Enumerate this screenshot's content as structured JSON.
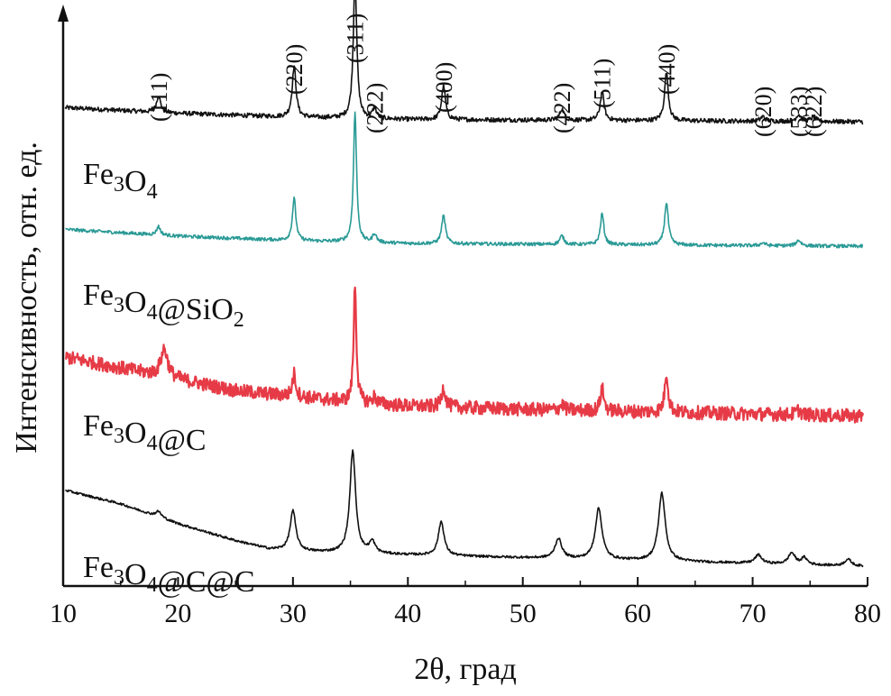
{
  "chart_data": {
    "type": "line",
    "title": "",
    "xlabel": "2θ, град",
    "ylabel": "Интенсивность, отн. ед.",
    "xlim": [
      10,
      80
    ],
    "xticks": [
      10,
      20,
      30,
      40,
      50,
      60,
      70,
      80
    ],
    "ytick_labels": false,
    "peak_labels": [
      {
        "hkl": "(111)",
        "x": 18.3
      },
      {
        "hkl": "(220)",
        "x": 30.1
      },
      {
        "hkl": "(311)",
        "x": 35.4
      },
      {
        "hkl": "(222)",
        "x": 37.1
      },
      {
        "hkl": "(400)",
        "x": 43.1
      },
      {
        "hkl": "(422)",
        "x": 53.4
      },
      {
        "hkl": "(511)",
        "x": 56.9
      },
      {
        "hkl": "(440)",
        "x": 62.5
      },
      {
        "hkl": "(620)",
        "x": 70.9
      },
      {
        "hkl": "(533)",
        "x": 74.0
      },
      {
        "hkl": "(622)",
        "x": 75.3
      }
    ],
    "series": [
      {
        "name": "Fe3O4",
        "label_base": "Fe",
        "label_sub1": "3",
        "label_mid": "O",
        "label_sub2": "4",
        "label_tail": "",
        "label_sub3": "",
        "color": "#111111",
        "offset": 0.82,
        "noise": 0.004,
        "baseline": [
          [
            10,
            0.025
          ],
          [
            20,
            0.015
          ],
          [
            30,
            0.008
          ],
          [
            40,
            0.004
          ],
          [
            80,
            0.0
          ]
        ],
        "peaks": [
          [
            18.3,
            0.03,
            0.2
          ],
          [
            30.1,
            0.09,
            0.2
          ],
          [
            35.4,
            0.25,
            0.18
          ],
          [
            37.1,
            0.018,
            0.2
          ],
          [
            43.1,
            0.06,
            0.2
          ],
          [
            53.4,
            0.02,
            0.22
          ],
          [
            56.9,
            0.05,
            0.2
          ],
          [
            62.5,
            0.085,
            0.2
          ],
          [
            70.9,
            0.008,
            0.25
          ],
          [
            74.0,
            0.012,
            0.25
          ],
          [
            75.3,
            0.008,
            0.25
          ]
        ]
      },
      {
        "name": "Fe3O4@SiO2",
        "label_base": "Fe",
        "label_sub1": "3",
        "label_mid": "O",
        "label_sub2": "4",
        "label_tail": "@SiO",
        "label_sub3": "2",
        "color": "#2a9a96",
        "offset": 0.6,
        "noise": 0.003,
        "baseline": [
          [
            10,
            0.03
          ],
          [
            20,
            0.018
          ],
          [
            30,
            0.01
          ],
          [
            40,
            0.005
          ],
          [
            80,
            0.0
          ]
        ],
        "peaks": [
          [
            18.3,
            0.015,
            0.2
          ],
          [
            30.1,
            0.075,
            0.18
          ],
          [
            35.4,
            0.23,
            0.16
          ],
          [
            37.1,
            0.015,
            0.2
          ],
          [
            43.1,
            0.05,
            0.2
          ],
          [
            53.4,
            0.015,
            0.22
          ],
          [
            56.9,
            0.055,
            0.18
          ],
          [
            62.5,
            0.075,
            0.2
          ],
          [
            70.9,
            0.005,
            0.25
          ],
          [
            74.0,
            0.01,
            0.25
          ]
        ]
      },
      {
        "name": "Fe3O4@C",
        "label_base": "Fe",
        "label_sub1": "3",
        "label_mid": "O",
        "label_sub2": "4",
        "label_tail": "@C",
        "label_sub3": "",
        "color": "#e63b46",
        "offset": 0.3,
        "noise": 0.012,
        "baseline": [
          [
            10,
            0.105
          ],
          [
            15,
            0.085
          ],
          [
            20,
            0.065
          ],
          [
            25,
            0.045
          ],
          [
            30,
            0.035
          ],
          [
            35,
            0.025
          ],
          [
            40,
            0.018
          ],
          [
            50,
            0.012
          ],
          [
            60,
            0.008
          ],
          [
            80,
            0.0
          ]
        ],
        "peaks": [
          [
            18.8,
            0.05,
            0.35
          ],
          [
            30.1,
            0.04,
            0.18
          ],
          [
            35.4,
            0.21,
            0.14
          ],
          [
            37.1,
            0.012,
            0.2
          ],
          [
            43.1,
            0.035,
            0.2
          ],
          [
            53.4,
            0.01,
            0.22
          ],
          [
            56.9,
            0.04,
            0.18
          ],
          [
            62.5,
            0.07,
            0.18
          ],
          [
            74.0,
            0.008,
            0.25
          ]
        ]
      },
      {
        "name": "Fe3O4@C@C",
        "label_base": "Fe",
        "label_sub1": "3",
        "label_mid": "O",
        "label_sub2": "4",
        "label_tail": "@C@C",
        "label_sub3": "",
        "color": "#111111",
        "offset": 0.01,
        "noise": 0.002,
        "baseline": [
          [
            10,
            0.16
          ],
          [
            15,
            0.135
          ],
          [
            20,
            0.1
          ],
          [
            25,
            0.07
          ],
          [
            28,
            0.055
          ],
          [
            32,
            0.05
          ],
          [
            40,
            0.045
          ],
          [
            50,
            0.04
          ],
          [
            60,
            0.035
          ],
          [
            70,
            0.03
          ],
          [
            79,
            0.025
          ]
        ],
        "peaks": [
          [
            18.3,
            0.01,
            0.3
          ],
          [
            30.0,
            0.07,
            0.3
          ],
          [
            35.2,
            0.18,
            0.3
          ],
          [
            36.9,
            0.02,
            0.3
          ],
          [
            42.9,
            0.06,
            0.3
          ],
          [
            53.1,
            0.035,
            0.35
          ],
          [
            56.6,
            0.09,
            0.35
          ],
          [
            62.1,
            0.12,
            0.35
          ],
          [
            70.5,
            0.015,
            0.35
          ],
          [
            73.4,
            0.02,
            0.35
          ],
          [
            74.5,
            0.012,
            0.3
          ],
          [
            78.3,
            0.012,
            0.35
          ]
        ]
      }
    ]
  }
}
